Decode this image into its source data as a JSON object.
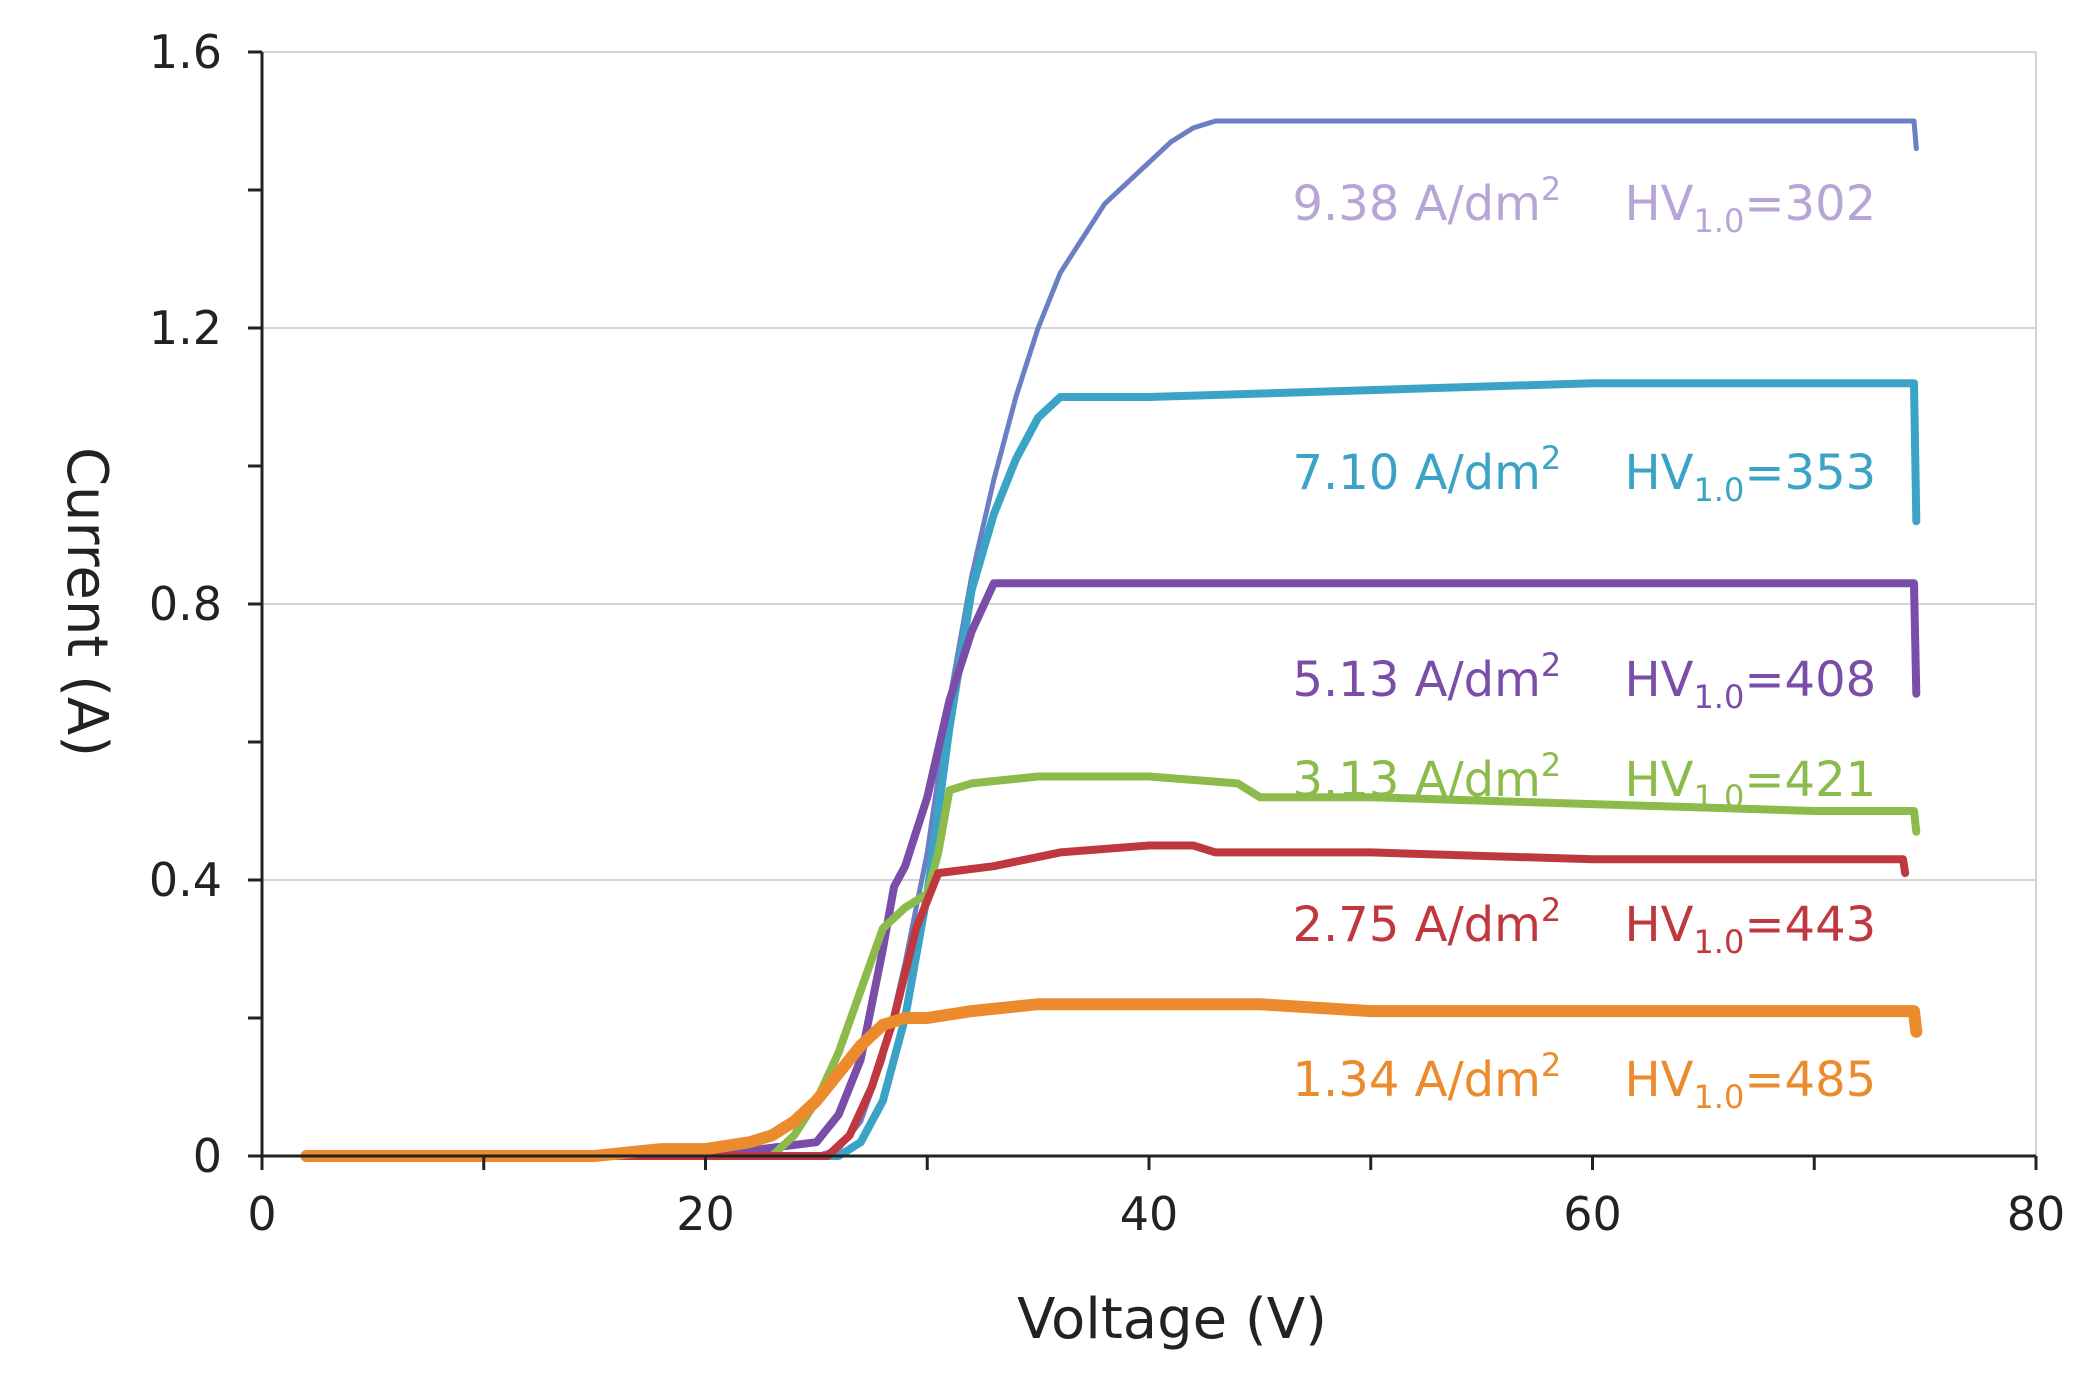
{
  "chart_data": {
    "type": "line",
    "title": "",
    "xlabel": "Voltage  (V)",
    "ylabel": "Current (A)",
    "xlim": [
      0,
      80
    ],
    "ylim": [
      0,
      1.6
    ],
    "x_ticks": [
      0,
      20,
      40,
      60,
      80
    ],
    "x_tick_labels": [
      "0",
      "20",
      "40",
      "60",
      "80"
    ],
    "y_ticks": [
      0,
      0.4,
      0.8,
      1.2,
      1.6
    ],
    "y_tick_labels": [
      "0",
      "0.4",
      "0.8",
      "1.2",
      "1.6"
    ],
    "grid": "horizontal",
    "legend": "none",
    "series": [
      {
        "name": "9.38 A/dm2",
        "color": "#6b7fc4",
        "label_color": "#b7a5d6",
        "points": [
          [
            2,
            0
          ],
          [
            10,
            0
          ],
          [
            20,
            0
          ],
          [
            25,
            0
          ],
          [
            26,
            0.01
          ],
          [
            27,
            0.05
          ],
          [
            28,
            0.14
          ],
          [
            29,
            0.28
          ],
          [
            30,
            0.44
          ],
          [
            31,
            0.66
          ],
          [
            32,
            0.84
          ],
          [
            33,
            0.98
          ],
          [
            34,
            1.1
          ],
          [
            35,
            1.2
          ],
          [
            36,
            1.28
          ],
          [
            38,
            1.38
          ],
          [
            40,
            1.44
          ],
          [
            41,
            1.47
          ],
          [
            42,
            1.49
          ],
          [
            43,
            1.5
          ],
          [
            50,
            1.5
          ],
          [
            60,
            1.5
          ],
          [
            70,
            1.5
          ],
          [
            74.5,
            1.5
          ],
          [
            74.6,
            1.46
          ]
        ]
      },
      {
        "name": "7.10 A/dm2",
        "color": "#3ba3c6",
        "label_color": "#3ba3c6",
        "points": [
          [
            2,
            0
          ],
          [
            10,
            0
          ],
          [
            20,
            0
          ],
          [
            26,
            0
          ],
          [
            27,
            0.02
          ],
          [
            28,
            0.08
          ],
          [
            29,
            0.2
          ],
          [
            30,
            0.38
          ],
          [
            31,
            0.62
          ],
          [
            32,
            0.82
          ],
          [
            33,
            0.93
          ],
          [
            34,
            1.01
          ],
          [
            35,
            1.07
          ],
          [
            36,
            1.1
          ],
          [
            40,
            1.1
          ],
          [
            50,
            1.11
          ],
          [
            60,
            1.12
          ],
          [
            70,
            1.12
          ],
          [
            74.5,
            1.12
          ],
          [
            74.6,
            0.92
          ]
        ]
      },
      {
        "name": "5.13 A/dm2",
        "color": "#7a4ea8",
        "label_color": "#7a4ea8",
        "points": [
          [
            2,
            0
          ],
          [
            10,
            0
          ],
          [
            20,
            0
          ],
          [
            25,
            0.02
          ],
          [
            26,
            0.06
          ],
          [
            27,
            0.14
          ],
          [
            28,
            0.3
          ],
          [
            28.5,
            0.39
          ],
          [
            29,
            0.42
          ],
          [
            30,
            0.52
          ],
          [
            31,
            0.66
          ],
          [
            32,
            0.76
          ],
          [
            33,
            0.83
          ],
          [
            40,
            0.83
          ],
          [
            50,
            0.83
          ],
          [
            60,
            0.83
          ],
          [
            70,
            0.83
          ],
          [
            74.5,
            0.83
          ],
          [
            74.6,
            0.67
          ]
        ]
      },
      {
        "name": "3.13 A/dm2",
        "color": "#8cbb4b",
        "label_color": "#8cbb4b",
        "points": [
          [
            2,
            0
          ],
          [
            10,
            0
          ],
          [
            20,
            0
          ],
          [
            23,
            0
          ],
          [
            24,
            0.03
          ],
          [
            25,
            0.08
          ],
          [
            26,
            0.15
          ],
          [
            27,
            0.24
          ],
          [
            28,
            0.33
          ],
          [
            29,
            0.36
          ],
          [
            30,
            0.38
          ],
          [
            30.5,
            0.44
          ],
          [
            31,
            0.53
          ],
          [
            32,
            0.54
          ],
          [
            35,
            0.55
          ],
          [
            40,
            0.55
          ],
          [
            44,
            0.54
          ],
          [
            45,
            0.52
          ],
          [
            50,
            0.52
          ],
          [
            60,
            0.51
          ],
          [
            70,
            0.5
          ],
          [
            74.5,
            0.5
          ],
          [
            74.6,
            0.47
          ]
        ]
      },
      {
        "name": "2.75 A/dm2",
        "color": "#c0383f",
        "label_color": "#c0383f",
        "points": [
          [
            2,
            0
          ],
          [
            10,
            0
          ],
          [
            20,
            0
          ],
          [
            25.5,
            0
          ],
          [
            26.5,
            0.03
          ],
          [
            27.5,
            0.1
          ],
          [
            28.5,
            0.2
          ],
          [
            29.5,
            0.33
          ],
          [
            30.5,
            0.41
          ],
          [
            33,
            0.42
          ],
          [
            36,
            0.44
          ],
          [
            40,
            0.45
          ],
          [
            42,
            0.45
          ],
          [
            43,
            0.44
          ],
          [
            50,
            0.44
          ],
          [
            60,
            0.43
          ],
          [
            70,
            0.43
          ],
          [
            74,
            0.43
          ],
          [
            74.1,
            0.41
          ]
        ]
      },
      {
        "name": "1.34 A/dm2",
        "color": "#ec8a2e",
        "label_color": "#ec8a2e",
        "points": [
          [
            2,
            0
          ],
          [
            5,
            0
          ],
          [
            10,
            0
          ],
          [
            15,
            0
          ],
          [
            18,
            0.01
          ],
          [
            20,
            0.01
          ],
          [
            22,
            0.02
          ],
          [
            23,
            0.03
          ],
          [
            24,
            0.05
          ],
          [
            25,
            0.08
          ],
          [
            26,
            0.12
          ],
          [
            27,
            0.16
          ],
          [
            28,
            0.19
          ],
          [
            29,
            0.2
          ],
          [
            30,
            0.2
          ],
          [
            32,
            0.21
          ],
          [
            35,
            0.22
          ],
          [
            40,
            0.22
          ],
          [
            45,
            0.22
          ],
          [
            50,
            0.21
          ],
          [
            60,
            0.21
          ],
          [
            70,
            0.21
          ],
          [
            74.5,
            0.21
          ],
          [
            74.6,
            0.18
          ]
        ]
      }
    ],
    "annotations": [
      {
        "current_density": "9.38 A/dm",
        "cd_sup": "2",
        "hv_main": "HV",
        "hv_sub": "1.0",
        "hv_value": "=302",
        "color": "#b7a5d6",
        "x": 60,
        "y": 1.38
      },
      {
        "current_density": "7.10 A/dm",
        "cd_sup": "2",
        "hv_main": "HV",
        "hv_sub": "1.0",
        "hv_value": "=353",
        "color": "#3ba3c6",
        "x": 60,
        "y": 0.99
      },
      {
        "current_density": "5.13 A/dm",
        "cd_sup": "2",
        "hv_main": "HV",
        "hv_sub": "1.0",
        "hv_value": "=408",
        "color": "#7a4ea8",
        "x": 60,
        "y": 0.69
      },
      {
        "current_density": "3.13 A/dm",
        "cd_sup": "2",
        "hv_main": "HV",
        "hv_sub": "1.0",
        "hv_value": "=421",
        "color": "#8cbb4b",
        "x": 60,
        "y": 0.545
      },
      {
        "current_density": "2.75 A/dm",
        "cd_sup": "2",
        "hv_main": "HV",
        "hv_sub": "1.0",
        "hv_value": "=443",
        "color": "#c0383f",
        "x": 60,
        "y": 0.335
      },
      {
        "current_density": "1.34 A/dm",
        "cd_sup": "2",
        "hv_main": "HV",
        "hv_sub": "1.0",
        "hv_value": "=485",
        "color": "#ec8a2e",
        "x": 60,
        "y": 0.11
      }
    ]
  }
}
